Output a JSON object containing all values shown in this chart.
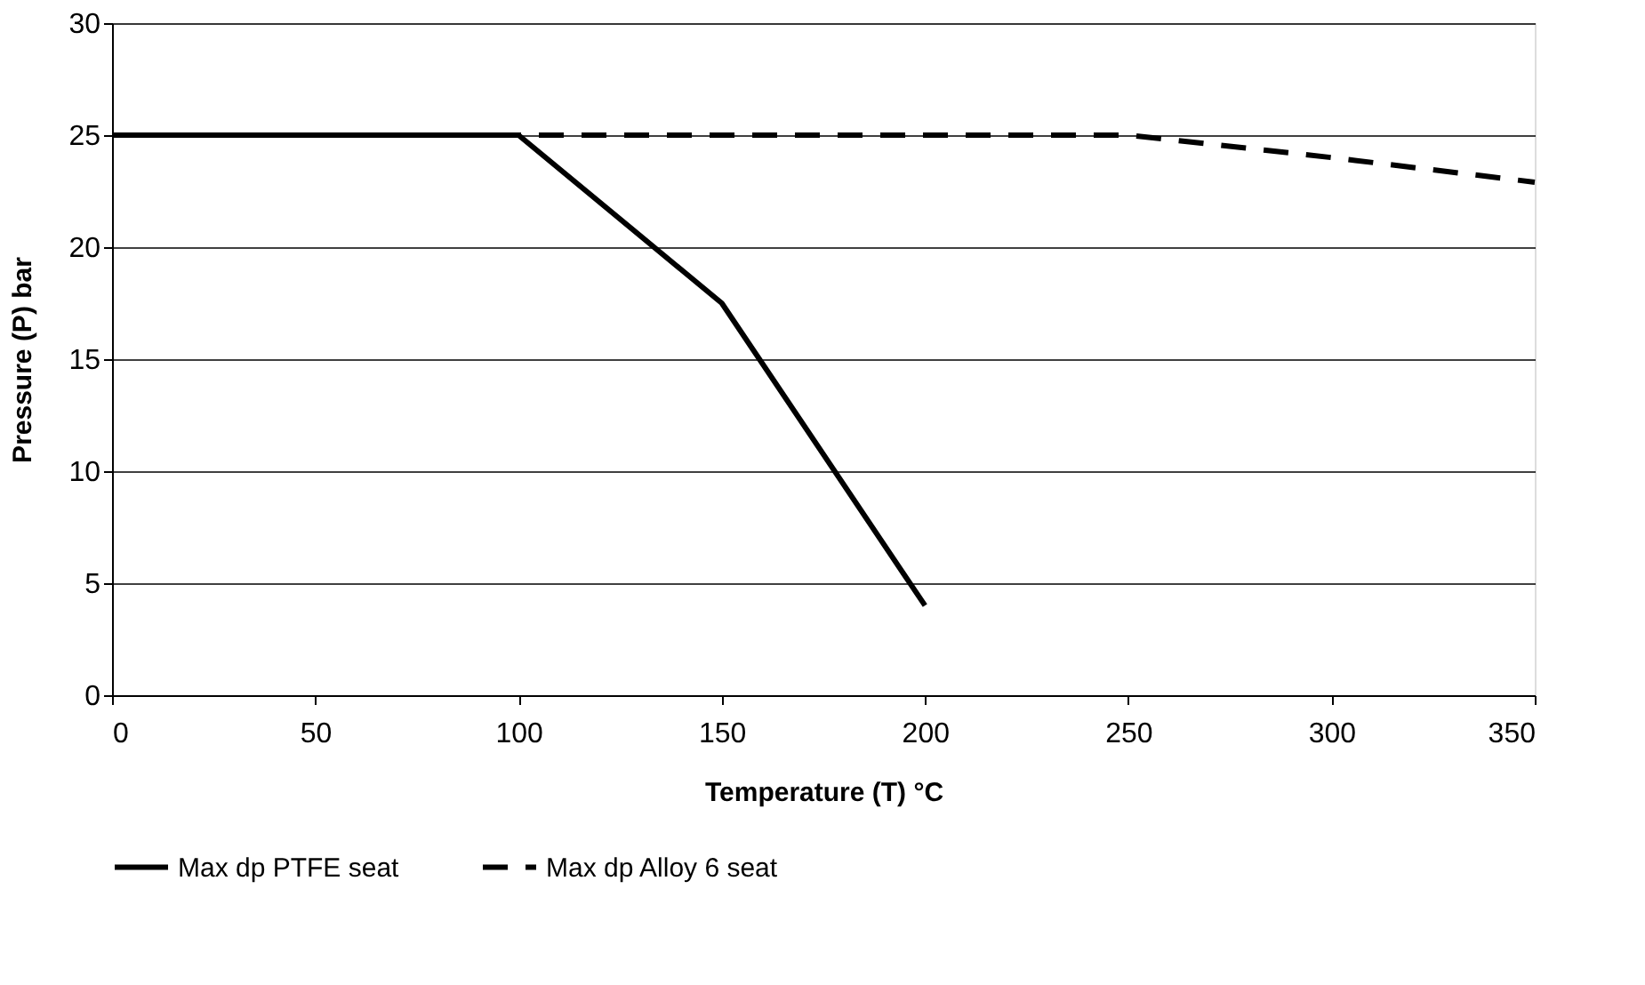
{
  "chart_data": {
    "type": "line",
    "xlabel": "Temperature (T) °C",
    "ylabel": "Pressure (P) bar",
    "x": [
      0,
      50,
      100,
      150,
      200,
      250,
      300,
      350
    ],
    "series": [
      {
        "name": "Max dp PTFE seat",
        "color": "#000000",
        "line_style": "solid",
        "values": [
          25,
          25,
          25,
          17.5,
          4,
          null,
          null,
          null
        ]
      },
      {
        "name": "Max dp Alloy 6 seat",
        "color": "#000000",
        "line_style": "dashed",
        "values": [
          25,
          25,
          25,
          25,
          25,
          25,
          24,
          22.9
        ]
      }
    ],
    "xlim": [
      0,
      350
    ],
    "xticks": [
      0,
      50,
      100,
      150,
      200,
      250,
      300,
      350
    ],
    "ylim": [
      0,
      30
    ],
    "yticks": [
      0,
      5,
      10,
      15,
      20,
      25,
      30
    ],
    "grid": "y",
    "legend": "bottom",
    "marker": "none"
  }
}
